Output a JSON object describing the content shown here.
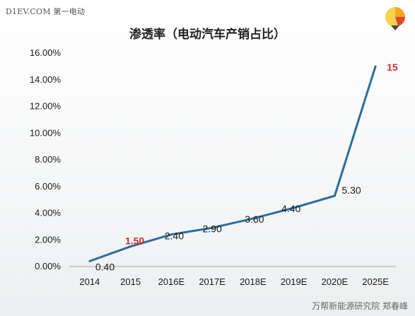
{
  "watermark_top": "D1EV.COM 第一电动",
  "watermark_bottom": "万帮新能源研究院 郑春峰",
  "colors": {
    "line": "#2c6d9e",
    "axis": "#aaaaaa",
    "highlight": "#d32c2c",
    "logo_orange": "#f5a623",
    "logo_yellow": "#f8d24a",
    "logo_red": "#e2452c"
  },
  "chart_data": {
    "type": "line",
    "title": "渗透率（电动汽车产销占比）",
    "xlabel": "",
    "ylabel": "",
    "categories": [
      "2014",
      "2015",
      "2016E",
      "2017E",
      "2018E",
      "2019E",
      "2020E",
      "2025E"
    ],
    "values": [
      0.4,
      1.5,
      2.4,
      2.9,
      3.6,
      4.4,
      5.3,
      15
    ],
    "data_labels": [
      "0.40",
      "1.50",
      "2.40",
      "2.90",
      "3.60",
      "4.40",
      "5.30",
      "15"
    ],
    "highlighted_labels": [
      "1.50",
      "15"
    ],
    "ylim": [
      0,
      16
    ],
    "y_ticks": [
      "0.00%",
      "2.00%",
      "4.00%",
      "6.00%",
      "8.00%",
      "10.00%",
      "12.00%",
      "14.00%",
      "16.00%"
    ],
    "grid": false,
    "legend": "none"
  }
}
